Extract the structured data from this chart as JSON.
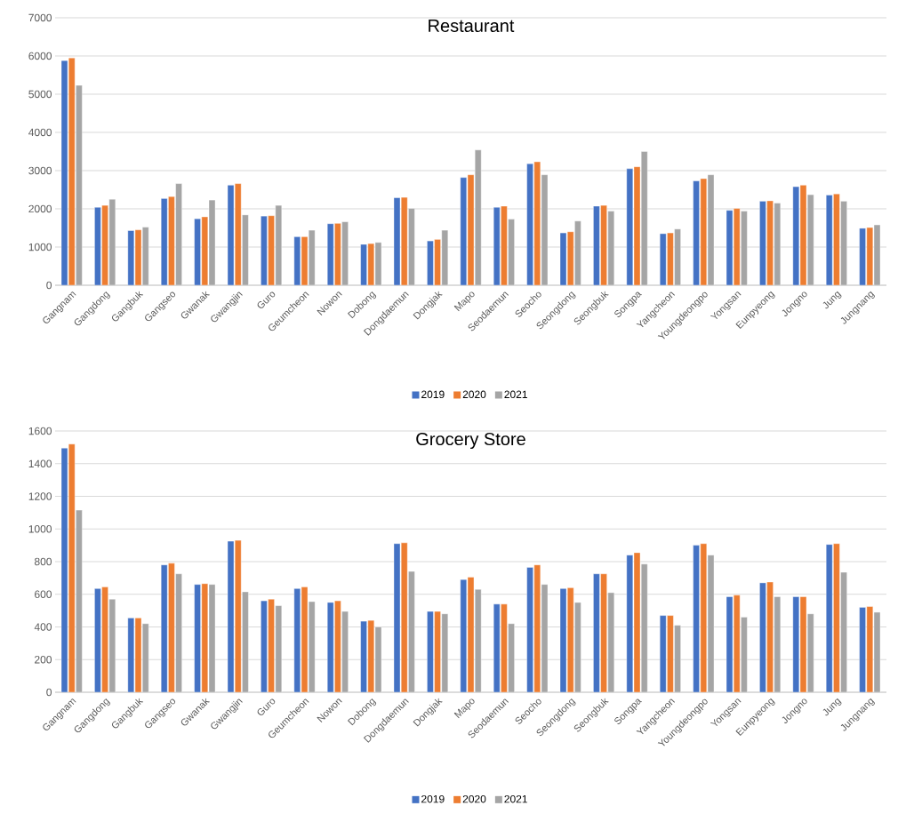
{
  "chart_data": [
    {
      "type": "bar",
      "title": "Restaurant",
      "categories": [
        "Gangnam",
        "Gangdong",
        "Gangbuk",
        "Gangseo",
        "Gwanak",
        "Gwangjin",
        "Guro",
        "Geumcheon",
        "Nowon",
        "Dobong",
        "Dongdaemun",
        "Dongjak",
        "Mapo",
        "Seodaemun",
        "Seocho",
        "Seongdong",
        "Seongbuk",
        "Songpa",
        "Yangcheon",
        "Youngdeongpo",
        "Yongsan",
        "Eunpyeong",
        "Jongno",
        "Jung",
        "Jungnang"
      ],
      "series": [
        {
          "name": "2019",
          "color": "#4472c4",
          "values": [
            5880,
            2040,
            1430,
            2270,
            1740,
            2620,
            1810,
            1270,
            1610,
            1070,
            2290,
            1160,
            2820,
            2040,
            3180,
            1370,
            2070,
            3050,
            1350,
            2730,
            1960,
            2200,
            2580,
            2360,
            1490
          ]
        },
        {
          "name": "2020",
          "color": "#ed7d31",
          "values": [
            5950,
            2090,
            1450,
            2320,
            1790,
            2660,
            1820,
            1270,
            1620,
            1090,
            2300,
            1200,
            2890,
            2070,
            3230,
            1400,
            2090,
            3100,
            1370,
            2790,
            2010,
            2210,
            2620,
            2390,
            1510
          ]
        },
        {
          "name": "2021",
          "color": "#a5a5a5",
          "values": [
            5230,
            2250,
            1520,
            2660,
            2230,
            1840,
            2090,
            1440,
            1660,
            1120,
            2010,
            1440,
            3540,
            1730,
            2890,
            1680,
            1940,
            3500,
            1470,
            2890,
            1940,
            2150,
            2370,
            2200,
            1580
          ]
        }
      ],
      "ylim": [
        0,
        7000
      ],
      "yticks": [
        0,
        1000,
        2000,
        3000,
        4000,
        5000,
        6000,
        7000
      ],
      "grid": "y",
      "legend": "bottom"
    },
    {
      "type": "bar",
      "title": "Grocery Store",
      "categories": [
        "Gangnam",
        "Gangdong",
        "Gangbuk",
        "Gangseo",
        "Gwanak",
        "Gwangjin",
        "Guro",
        "Geumcheon",
        "Nowon",
        "Dobong",
        "Dongdaemun",
        "Dongjak",
        "Mapo",
        "Seodaemun",
        "Seocho",
        "Seongdong",
        "Seongbuk",
        "Songpa",
        "Yangcheon",
        "Youngdeongpo",
        "Yongsan",
        "Eunpyeong",
        "Jongno",
        "Jung",
        "Jungnang"
      ],
      "series": [
        {
          "name": "2019",
          "color": "#4472c4",
          "values": [
            1495,
            635,
            455,
            780,
            660,
            925,
            560,
            635,
            550,
            435,
            910,
            495,
            690,
            540,
            765,
            635,
            725,
            840,
            470,
            900,
            585,
            670,
            585,
            905,
            520
          ]
        },
        {
          "name": "2020",
          "color": "#ed7d31",
          "values": [
            1520,
            645,
            455,
            790,
            665,
            930,
            570,
            645,
            560,
            440,
            915,
            495,
            705,
            540,
            780,
            640,
            725,
            855,
            470,
            910,
            595,
            675,
            585,
            910,
            525
          ]
        },
        {
          "name": "2021",
          "color": "#a5a5a5",
          "values": [
            1115,
            570,
            420,
            725,
            660,
            615,
            530,
            555,
            495,
            400,
            740,
            480,
            630,
            420,
            660,
            550,
            610,
            785,
            410,
            840,
            460,
            585,
            480,
            735,
            490
          ]
        }
      ],
      "ylim": [
        0,
        1600
      ],
      "yticks": [
        0,
        200,
        400,
        600,
        800,
        1000,
        1200,
        1400,
        1600
      ],
      "grid": "y",
      "legend": "bottom"
    }
  ]
}
